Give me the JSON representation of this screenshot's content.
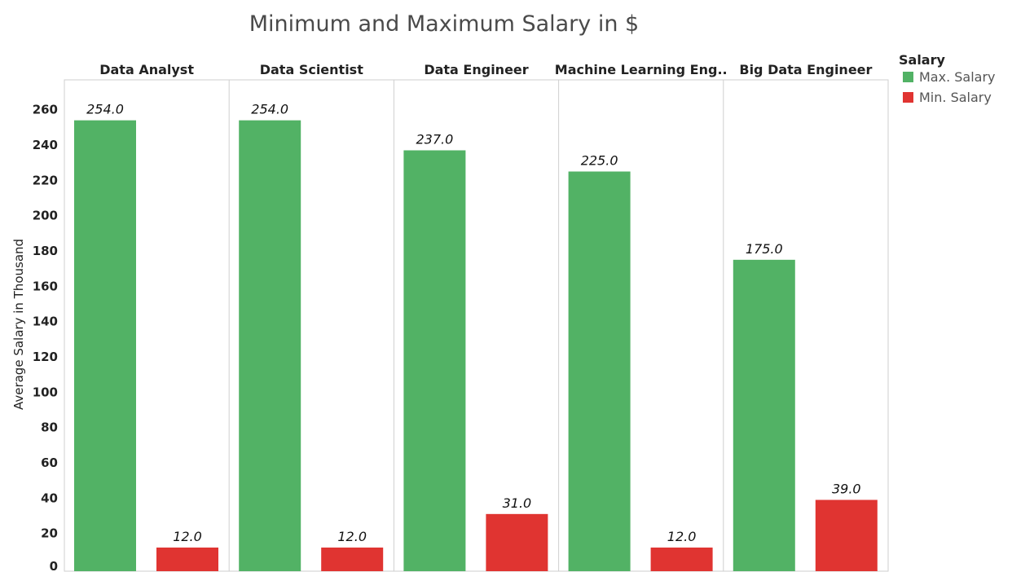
{
  "chart_data": {
    "type": "bar",
    "title": "Minimum and Maximum Salary in $",
    "ylabel": "Average Salary in Thousand",
    "ylim": [
      0,
      270
    ],
    "yticks": [
      0,
      20,
      40,
      60,
      80,
      100,
      120,
      140,
      160,
      180,
      200,
      220,
      240,
      260
    ],
    "categories": [
      "Data Analyst",
      "Data Scientist",
      "Data Engineer",
      "Machine Learning Eng..",
      "Big Data Engineer"
    ],
    "series": [
      {
        "name": "Max. Salary",
        "color": "#52b265",
        "values": [
          254.0,
          254.0,
          237.0,
          225.0,
          175.0
        ],
        "labels": [
          "254.0",
          "254.0",
          "237.0",
          "225.0",
          "175.0"
        ]
      },
      {
        "name": "Min. Salary",
        "color": "#e03431",
        "values": [
          12.0,
          12.0,
          31.0,
          12.0,
          39.0
        ],
        "labels": [
          "12.0",
          "12.0",
          "31.0",
          "12.0",
          "39.0"
        ]
      }
    ],
    "legend": {
      "title": "Salary",
      "position": "right"
    },
    "grid": false
  }
}
